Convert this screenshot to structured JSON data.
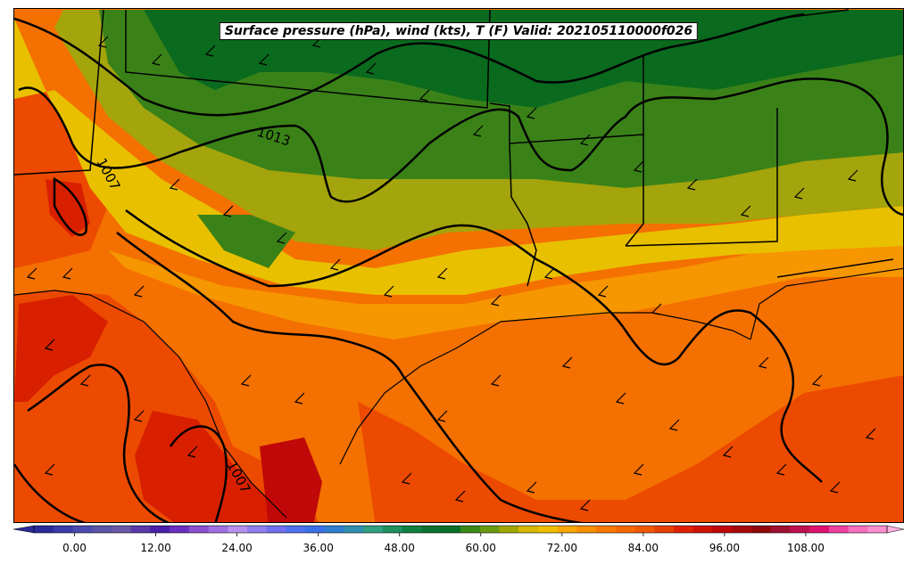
{
  "title": "Surface pressure (hPa), wind (kts), T (F) Valid: 202105110000f026",
  "isobar_labels": [
    "1013",
    "1007",
    "1007"
  ],
  "colorbar": {
    "min": -6,
    "max": 120,
    "step": 3,
    "extend": "both",
    "tick_labels": [
      "0.00",
      "12.00",
      "24.00",
      "36.00",
      "48.00",
      "60.00",
      "72.00",
      "84.00",
      "96.00",
      "108.00"
    ],
    "tick_values": [
      0,
      12,
      24,
      36,
      48,
      60,
      72,
      84,
      96,
      108
    ],
    "colors": [
      "#2a2a9a",
      "#3a3aa8",
      "#4b4bb0",
      "#5a55a8",
      "#6a5aa8",
      "#5a3aa8",
      "#4a20a8",
      "#6a30c0",
      "#8a50d0",
      "#a070e0",
      "#b890f0",
      "#9080f0",
      "#7070f0",
      "#5070f0",
      "#3a70e8",
      "#3080d0",
      "#3090b0",
      "#30a080",
      "#209060",
      "#108040",
      "#0a7030",
      "#087028",
      "#3a8a18",
      "#6a9a10",
      "#a0a800",
      "#d8b800",
      "#f0c000",
      "#f8a800",
      "#f89000",
      "#f87800",
      "#f86800",
      "#f05800",
      "#e84000",
      "#e02000",
      "#d01000",
      "#c00808",
      "#a80808",
      "#900808",
      "#a01030",
      "#c01050",
      "#e01070",
      "#f040a0",
      "#f870c0",
      "#ff90d0"
    ]
  },
  "legend_colors": {
    "cold_green": "#0a6a1e",
    "green": "#3a8218",
    "olive": "#a4a40c",
    "yellow": "#e8c000",
    "orange_light": "#f69600",
    "orange": "#f47000",
    "orange_red": "#ec4a00",
    "red": "#d82000"
  }
}
